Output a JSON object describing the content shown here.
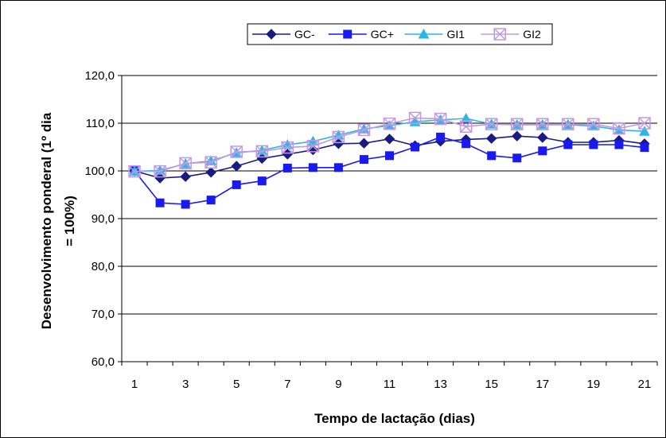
{
  "chart_data": {
    "type": "line",
    "title": "",
    "xlabel": "Tempo de lactação (dias)",
    "ylabel_lines": [
      "Desenvolvimento ponderal (1º dia",
      "= 100%)"
    ],
    "ylim": [
      60,
      120
    ],
    "yticks": [
      "60,0",
      "70,0",
      "80,0",
      "90,0",
      "100,0",
      "110,0",
      "120,0"
    ],
    "xlim": [
      1,
      21
    ],
    "xticks": [
      "1",
      "3",
      "5",
      "7",
      "9",
      "11",
      "13",
      "15",
      "17",
      "19",
      "21"
    ],
    "legend_position": "top",
    "x": [
      1,
      2,
      3,
      4,
      5,
      6,
      7,
      8,
      9,
      10,
      11,
      12,
      13,
      14,
      15,
      16,
      17,
      18,
      19,
      20,
      21
    ],
    "series": [
      {
        "name": "GC-",
        "color": "#1a1a80",
        "marker": "diamond",
        "values": [
          100.0,
          98.5,
          98.8,
          99.7,
          101.0,
          102.6,
          103.5,
          104.4,
          105.7,
          105.8,
          106.7,
          105.3,
          106.2,
          106.6,
          106.8,
          107.3,
          107.0,
          106.0,
          106.0,
          106.4,
          105.7
        ]
      },
      {
        "name": "GC+",
        "color": "#1a1aee",
        "marker": "square",
        "values": [
          100.0,
          93.3,
          93.0,
          93.9,
          97.1,
          97.9,
          100.6,
          100.7,
          100.7,
          102.4,
          103.2,
          105.0,
          107.1,
          105.7,
          103.2,
          102.7,
          104.2,
          105.5,
          105.5,
          105.5,
          104.9
        ]
      },
      {
        "name": "GI1",
        "color": "#2ab7e6",
        "marker": "triangle",
        "values": [
          99.9,
          100.1,
          101.5,
          102.1,
          103.8,
          104.3,
          105.5,
          106.2,
          107.5,
          108.8,
          109.5,
          110.3,
          110.7,
          111.0,
          109.8,
          109.7,
          109.7,
          109.7,
          109.4,
          108.6,
          108.3
        ]
      },
      {
        "name": "GI2",
        "color": "#c09ae0",
        "marker": "box-x",
        "values": [
          99.9,
          99.9,
          101.6,
          101.8,
          104.0,
          104.1,
          104.9,
          105.2,
          107.1,
          108.6,
          109.9,
          111.1,
          110.9,
          109.3,
          109.8,
          109.8,
          109.8,
          109.8,
          109.8,
          108.9,
          110.0
        ]
      }
    ]
  }
}
